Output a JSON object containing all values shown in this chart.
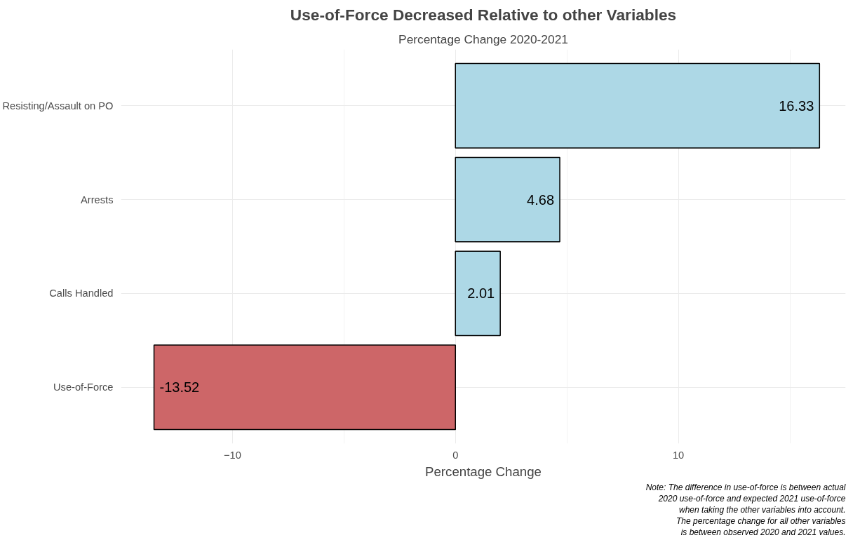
{
  "chart_data": {
    "type": "bar",
    "orientation": "horizontal",
    "title": "Use-of-Force Decreased Relative to other Variables",
    "subtitle": "Percentage Change 2020-2021",
    "xlabel": "Percentage Change",
    "categories": [
      "Resisting/Assault on PO",
      "Arrests",
      "Calls Handled",
      "Use-of-Force"
    ],
    "values": [
      16.33,
      4.68,
      2.01,
      -13.52
    ],
    "colors": [
      "#add8e6",
      "#add8e6",
      "#add8e6",
      "#cd6668"
    ],
    "data_labels": true,
    "xlim": [
      -15,
      17.5
    ],
    "xticks": [
      -10,
      0,
      10
    ],
    "grid": true,
    "annotations": [
      "Note: The difference in use-of-force is between actual\n2020 use-of-force and expected 2021 use-of-force\nwhen taking the other variables into account.\nThe percentage change for all other variables\nis between observed 2020 and 2021 values."
    ]
  }
}
